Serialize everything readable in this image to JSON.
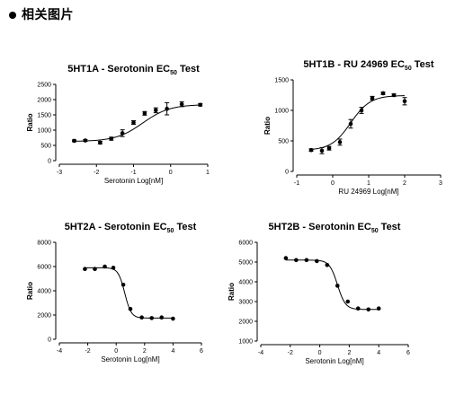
{
  "header": {
    "title": "相关图片"
  },
  "chart_data": [
    {
      "type": "scatter",
      "title": "5HT1A - Serotonin EC",
      "title_sub": "50",
      "title_suffix": " Test",
      "xlabel": "Serotonin Log[nM]",
      "ylabel": "Ratio",
      "xlim": [
        -3,
        1
      ],
      "ylim": [
        0,
        2500
      ],
      "xticks": [
        -3,
        -2,
        -1,
        0,
        1
      ],
      "xtick_labels": [
        "-3",
        "-2",
        "-1",
        "0",
        "1"
      ],
      "yticks": [
        0,
        500,
        1000,
        1500,
        2000,
        2500
      ],
      "ytick_labels": [
        "0",
        "500",
        "1000",
        "1500",
        "2000",
        "2500"
      ],
      "curve": {
        "bottom": 630,
        "top": 1840,
        "logEC50": -0.75,
        "hill": 1.2
      },
      "series": [
        {
          "x": [
            -2.6,
            -2.3,
            -1.9,
            -1.6,
            -1.3,
            -1.0,
            -0.7,
            -0.4,
            -0.1,
            0.3,
            0.8
          ],
          "y": [
            650,
            660,
            590,
            720,
            900,
            1250,
            1550,
            1650,
            1700,
            1850,
            1830
          ],
          "err": [
            30,
            30,
            40,
            50,
            110,
            60,
            60,
            80,
            200,
            80,
            40
          ]
        }
      ]
    },
    {
      "type": "scatter",
      "title": "5HT1B - RU 24969 EC",
      "title_sub": "50",
      "title_suffix": " Test",
      "xlabel": "RU 24969 Log[nM]",
      "ylabel": "Ratio",
      "xlim": [
        -1,
        3
      ],
      "ylim": [
        0,
        1500
      ],
      "xticks": [
        -1,
        0,
        1,
        2,
        3
      ],
      "xtick_labels": [
        "-1",
        "0",
        "1",
        "2",
        "3"
      ],
      "yticks": [
        0,
        500,
        1000,
        1500
      ],
      "ytick_labels": [
        "0",
        "500",
        "1000",
        "1500"
      ],
      "curve": {
        "bottom": 345,
        "top": 1245,
        "logEC50": 0.5,
        "hill": 1.6
      },
      "series": [
        {
          "x": [
            -0.6,
            -0.3,
            -0.1,
            0.2,
            0.5,
            0.8,
            1.1,
            1.4,
            1.7,
            2.0
          ],
          "y": [
            350,
            340,
            380,
            480,
            780,
            1000,
            1200,
            1280,
            1250,
            1150
          ],
          "err": [
            20,
            50,
            30,
            50,
            70,
            50,
            30,
            20,
            20,
            60
          ]
        }
      ]
    },
    {
      "type": "scatter",
      "title": "5HT2A - Serotonin EC",
      "title_sub": "50",
      "title_suffix": " Test",
      "xlabel": "Serotonin Log[nM]",
      "ylabel": "Ratio",
      "xlim": [
        -4,
        6
      ],
      "ylim": [
        0,
        8000
      ],
      "xticks": [
        -4,
        -2,
        0,
        2,
        4,
        6
      ],
      "xtick_labels": [
        "-4",
        "-2",
        "0",
        "2",
        "4",
        "6"
      ],
      "yticks": [
        0,
        2000,
        4000,
        6000,
        8000
      ],
      "ytick_labels": [
        "0",
        "2000",
        "4000",
        "6000",
        "8000"
      ],
      "curve": {
        "bottom": 1750,
        "top": 5900,
        "logEC50": 0.6,
        "hill": -1.9
      },
      "series": [
        {
          "x": [
            -2.2,
            -1.5,
            -0.8,
            -0.2,
            0.5,
            1.0,
            1.8,
            2.5,
            3.2,
            4.0
          ],
          "y": [
            5800,
            5800,
            6000,
            5900,
            4500,
            2500,
            1800,
            1750,
            1800,
            1700
          ],
          "err": [
            0,
            0,
            0,
            0,
            0,
            0,
            0,
            0,
            0,
            0
          ]
        }
      ]
    },
    {
      "type": "scatter",
      "title": "5HT2B - Serotonin EC",
      "title_sub": "50",
      "title_suffix": " Test",
      "xlabel": "Serotonin Log[nM]",
      "ylabel": "Ratio",
      "xlim": [
        -4,
        6
      ],
      "ylim": [
        1000,
        6000
      ],
      "xticks": [
        -4,
        -2,
        0,
        2,
        4,
        6
      ],
      "xtick_labels": [
        "-4",
        "-2",
        "0",
        "2",
        "4",
        "6"
      ],
      "yticks": [
        1000,
        2000,
        3000,
        4000,
        5000,
        6000
      ],
      "ytick_labels": [
        "1000",
        "2000",
        "3000",
        "4000",
        "5000",
        "6000"
      ],
      "curve": {
        "bottom": 2600,
        "top": 5100,
        "logEC50": 1.2,
        "hill": -1.6
      },
      "series": [
        {
          "x": [
            -2.3,
            -1.6,
            -0.9,
            -0.2,
            0.5,
            1.2,
            1.9,
            2.6,
            3.3,
            4.0
          ],
          "y": [
            5200,
            5100,
            5100,
            5050,
            4850,
            3800,
            3000,
            2650,
            2600,
            2650
          ],
          "err": [
            0,
            0,
            0,
            0,
            0,
            0,
            0,
            0,
            0,
            0
          ]
        }
      ]
    }
  ]
}
